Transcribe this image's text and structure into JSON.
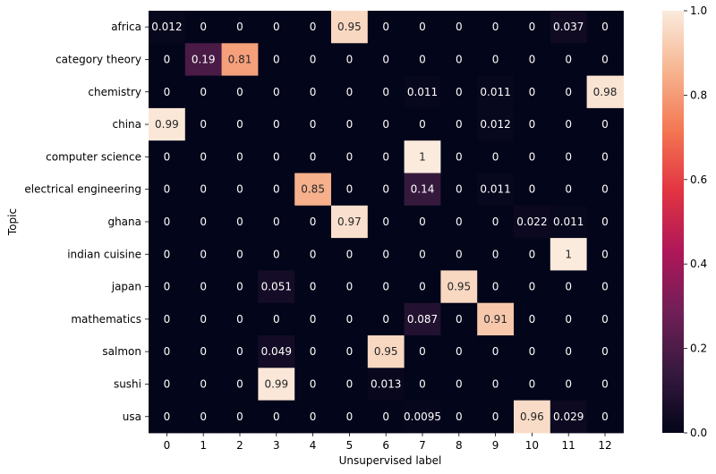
{
  "chart_data": {
    "type": "heatmap",
    "title": "",
    "xlabel": "Unsupervised label",
    "ylabel": "Topic",
    "x_categories": [
      "0",
      "1",
      "2",
      "3",
      "4",
      "5",
      "6",
      "7",
      "8",
      "9",
      "10",
      "11",
      "12"
    ],
    "y_categories": [
      "africa",
      "category theory",
      "chemistry",
      "china",
      "computer science",
      "electrical engineering",
      "ghana",
      "indian cuisine",
      "japan",
      "mathematics",
      "salmon",
      "sushi",
      "usa"
    ],
    "values": [
      [
        0.012,
        0,
        0,
        0,
        0,
        0.95,
        0,
        0,
        0,
        0,
        0,
        0.037,
        0
      ],
      [
        0,
        0.19,
        0.81,
        0,
        0,
        0,
        0,
        0,
        0,
        0,
        0,
        0,
        0
      ],
      [
        0,
        0,
        0,
        0,
        0,
        0,
        0,
        0.011,
        0,
        0.011,
        0,
        0,
        0.98
      ],
      [
        0.99,
        0,
        0,
        0,
        0,
        0,
        0,
        0,
        0,
        0.012,
        0,
        0,
        0
      ],
      [
        0,
        0,
        0,
        0,
        0,
        0,
        0,
        1,
        0,
        0,
        0,
        0,
        0
      ],
      [
        0,
        0,
        0,
        0,
        0.85,
        0,
        0,
        0.14,
        0,
        0.011,
        0,
        0,
        0
      ],
      [
        0,
        0,
        0,
        0,
        0,
        0.97,
        0,
        0,
        0,
        0,
        0.022,
        0.011,
        0
      ],
      [
        0,
        0,
        0,
        0,
        0,
        0,
        0,
        0,
        0,
        0,
        0,
        1,
        0
      ],
      [
        0,
        0,
        0,
        0.051,
        0,
        0,
        0,
        0,
        0.95,
        0,
        0,
        0,
        0
      ],
      [
        0,
        0,
        0,
        0,
        0,
        0,
        0,
        0.087,
        0,
        0.91,
        0,
        0,
        0
      ],
      [
        0,
        0,
        0,
        0.049,
        0,
        0,
        0.95,
        0,
        0,
        0,
        0,
        0,
        0
      ],
      [
        0,
        0,
        0,
        0.99,
        0,
        0,
        0.013,
        0,
        0,
        0,
        0,
        0,
        0
      ],
      [
        0,
        0,
        0,
        0,
        0,
        0,
        0,
        0.0095,
        0,
        0,
        0.96,
        0.029,
        0
      ]
    ],
    "value_labels": [
      [
        "0.012",
        "0",
        "0",
        "0",
        "0",
        "0.95",
        "0",
        "0",
        "0",
        "0",
        "0",
        "0.037",
        "0"
      ],
      [
        "0",
        "0.19",
        "0.81",
        "0",
        "0",
        "0",
        "0",
        "0",
        "0",
        "0",
        "0",
        "0",
        "0"
      ],
      [
        "0",
        "0",
        "0",
        "0",
        "0",
        "0",
        "0",
        "0.011",
        "0",
        "0.011",
        "0",
        "0",
        "0.98"
      ],
      [
        "0.99",
        "0",
        "0",
        "0",
        "0",
        "0",
        "0",
        "0",
        "0",
        "0.012",
        "0",
        "0",
        "0"
      ],
      [
        "0",
        "0",
        "0",
        "0",
        "0",
        "0",
        "0",
        "1",
        "0",
        "0",
        "0",
        "0",
        "0"
      ],
      [
        "0",
        "0",
        "0",
        "0",
        "0.85",
        "0",
        "0",
        "0.14",
        "0",
        "0.011",
        "0",
        "0",
        "0"
      ],
      [
        "0",
        "0",
        "0",
        "0",
        "0",
        "0.97",
        "0",
        "0",
        "0",
        "0",
        "0.022",
        "0.011",
        "0"
      ],
      [
        "0",
        "0",
        "0",
        "0",
        "0",
        "0",
        "0",
        "0",
        "0",
        "0",
        "0",
        "1",
        "0"
      ],
      [
        "0",
        "0",
        "0",
        "0.051",
        "0",
        "0",
        "0",
        "0",
        "0.95",
        "0",
        "0",
        "0",
        "0"
      ],
      [
        "0",
        "0",
        "0",
        "0",
        "0",
        "0",
        "0",
        "0.087",
        "0",
        "0.91",
        "0",
        "0",
        "0"
      ],
      [
        "0",
        "0",
        "0",
        "0.049",
        "0",
        "0",
        "0.95",
        "0",
        "0",
        "0",
        "0",
        "0",
        "0"
      ],
      [
        "0",
        "0",
        "0",
        "0.99",
        "0",
        "0",
        "0.013",
        "0",
        "0",
        "0",
        "0",
        "0",
        "0"
      ],
      [
        "0",
        "0",
        "0",
        "0",
        "0",
        "0",
        "0",
        "0.0095",
        "0",
        "0",
        "0.96",
        "0.029",
        "0"
      ]
    ],
    "colorbar": {
      "range": [
        0.0,
        1.0
      ],
      "ticks": [
        0.0,
        0.2,
        0.4,
        0.6,
        0.8,
        1.0
      ],
      "tick_labels": [
        "0.0",
        "0.2",
        "0.4",
        "0.6",
        "0.8",
        "1.0"
      ],
      "colormap": "rocket",
      "colormap_stops": [
        "#03051a",
        "#36193e",
        "#701f57",
        "#ae1759",
        "#e13342",
        "#f37651",
        "#f6b48f",
        "#faebdd"
      ]
    },
    "grid": false
  }
}
